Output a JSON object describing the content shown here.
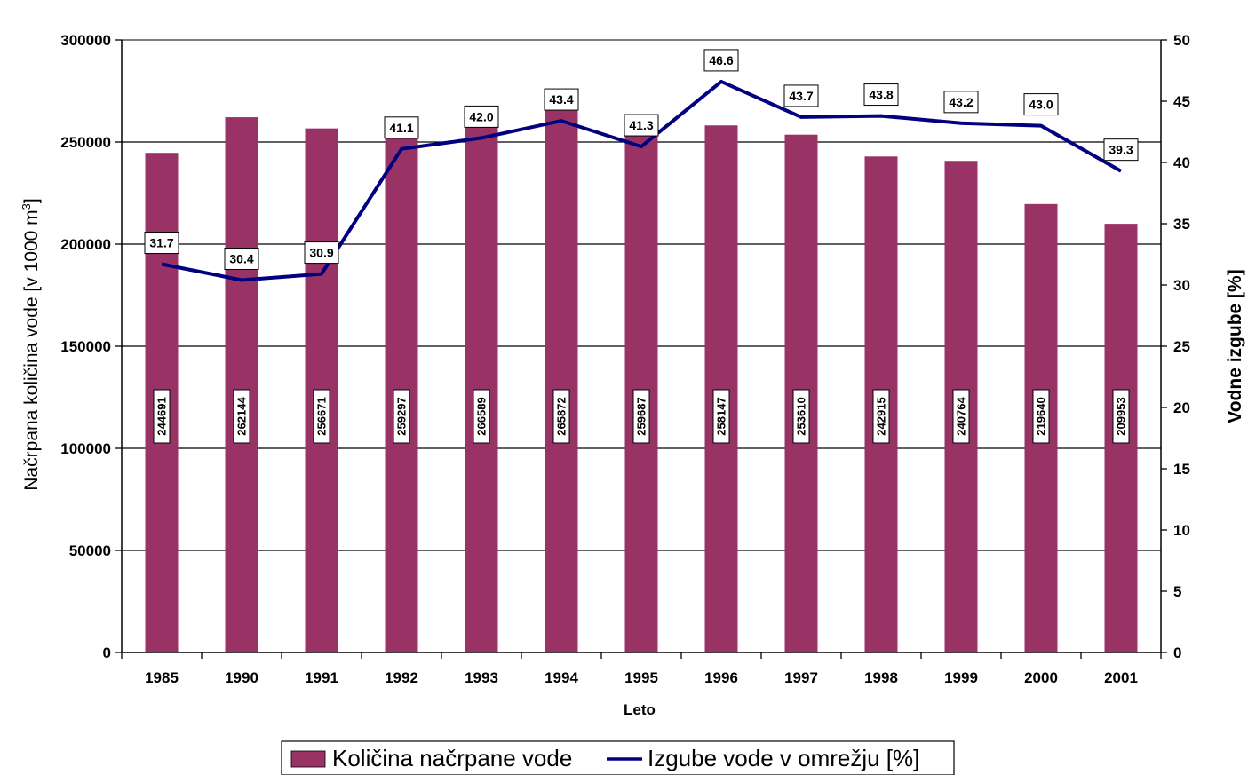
{
  "chart_data": {
    "type": "bar",
    "categories": [
      "1985",
      "1990",
      "1991",
      "1992",
      "1993",
      "1994",
      "1995",
      "1996",
      "1997",
      "1998",
      "1999",
      "2000",
      "2001"
    ],
    "series": [
      {
        "name": "Količina načrpane vode",
        "type": "bar",
        "axis": "left",
        "values": [
          244691,
          262144,
          256671,
          259297,
          266589,
          265872,
          259687,
          258147,
          253610,
          242915,
          240764,
          219640,
          209953
        ],
        "labels": [
          "244691",
          "262144",
          "256671",
          "259297",
          "266589",
          "265872",
          "259687",
          "258147",
          "253610",
          "242915",
          "240764",
          "219640",
          "209953"
        ]
      },
      {
        "name": "Izgube vode v omrežju [%]",
        "type": "line",
        "axis": "right",
        "values": [
          31.7,
          30.4,
          30.9,
          41.1,
          42.0,
          43.4,
          41.3,
          46.6,
          43.7,
          43.8,
          43.2,
          43.0,
          39.3
        ],
        "labels": [
          "31.7",
          "30.4",
          "30.9",
          "41.1",
          "42.0",
          "43.4",
          "41.3",
          "46.6",
          "43.7",
          "43.8",
          "43.2",
          "43.0",
          "39.3"
        ]
      }
    ],
    "xlabel": "Leto",
    "ylabel": "Načrpana količina vode [v 1000 m",
    "ylabel_sup": "3",
    "ylabel_end": "]",
    "y2label": "Vodne izgube [%]",
    "ylim": [
      0,
      300000
    ],
    "y2lim": [
      0,
      50
    ],
    "yticks": [
      "0",
      "50000",
      "100000",
      "150000",
      "200000",
      "250000",
      "300000"
    ],
    "y2ticks": [
      "0",
      "5",
      "10",
      "15",
      "20",
      "25",
      "30",
      "35",
      "40",
      "45",
      "50"
    ],
    "grid": true,
    "legend_position": "bottom",
    "colors": {
      "bar": "#993366",
      "line": "#000080",
      "grid": "#000000"
    }
  }
}
